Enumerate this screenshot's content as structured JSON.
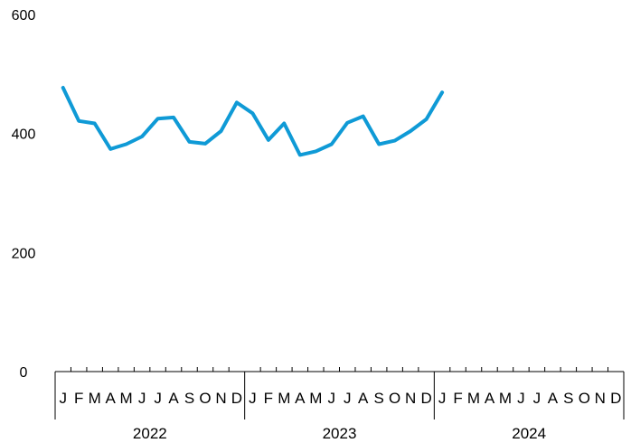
{
  "chart_data": {
    "type": "line",
    "title": "",
    "xlabel": "",
    "ylabel": "",
    "ylim": [
      0,
      600
    ],
    "yticks": [
      "0",
      "200",
      "400",
      "600"
    ],
    "grid": false,
    "legend": "none",
    "month_labels": [
      "J",
      "F",
      "M",
      "A",
      "M",
      "J",
      "J",
      "A",
      "S",
      "O",
      "N",
      "D",
      "J",
      "F",
      "M",
      "A",
      "M",
      "J",
      "J",
      "A",
      "S",
      "O",
      "N",
      "D",
      "J",
      "F",
      "M",
      "A",
      "M",
      "J",
      "J",
      "A",
      "S",
      "O",
      "N",
      "D"
    ],
    "year_labels": [
      "2022",
      "2023",
      "2024"
    ],
    "x": [
      "2022-01",
      "2022-02",
      "2022-03",
      "2022-04",
      "2022-05",
      "2022-06",
      "2022-07",
      "2022-08",
      "2022-09",
      "2022-10",
      "2022-11",
      "2022-12",
      "2023-01",
      "2023-02",
      "2023-03",
      "2023-04",
      "2023-05",
      "2023-06",
      "2023-07",
      "2023-08",
      "2023-09",
      "2023-10",
      "2023-11",
      "2023-12",
      "2024-01"
    ],
    "series": [
      {
        "color": "#0f9ad6",
        "values": [
          477,
          421,
          417,
          374,
          382,
          395,
          425,
          427,
          386,
          383,
          404,
          452,
          434,
          389,
          417,
          364,
          370,
          382,
          418,
          429,
          382,
          388,
          404,
          424,
          469
        ]
      }
    ]
  }
}
